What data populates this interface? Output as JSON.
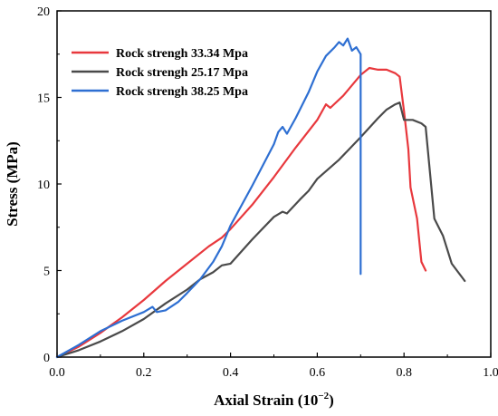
{
  "chart_data": {
    "type": "line",
    "xlabel_main": "Axial Strain (10",
    "xlabel_exp": "−2",
    "xlabel_close": ")",
    "ylabel": "Stress (MPa)",
    "xlim": [
      0,
      1.0
    ],
    "ylim": [
      0,
      20
    ],
    "x_ticks": [
      "0.0",
      "0.2",
      "0.4",
      "0.6",
      "0.8",
      "1.0"
    ],
    "y_ticks": [
      "0",
      "5",
      "10",
      "15",
      "20"
    ],
    "grid": false,
    "legend_position": "top-left",
    "series": [
      {
        "name": "Rock strengh 33.34 Mpa",
        "color": "#e8383d",
        "points": [
          [
            0,
            0
          ],
          [
            0.05,
            0.6
          ],
          [
            0.1,
            1.4
          ],
          [
            0.15,
            2.3
          ],
          [
            0.2,
            3.3
          ],
          [
            0.25,
            4.4
          ],
          [
            0.3,
            5.4
          ],
          [
            0.35,
            6.4
          ],
          [
            0.38,
            6.9
          ],
          [
            0.4,
            7.4
          ],
          [
            0.45,
            8.8
          ],
          [
            0.5,
            10.4
          ],
          [
            0.55,
            12.1
          ],
          [
            0.6,
            13.7
          ],
          [
            0.62,
            14.6
          ],
          [
            0.63,
            14.4
          ],
          [
            0.66,
            15.1
          ],
          [
            0.7,
            16.3
          ],
          [
            0.72,
            16.7
          ],
          [
            0.74,
            16.6
          ],
          [
            0.76,
            16.6
          ],
          [
            0.78,
            16.4
          ],
          [
            0.79,
            16.2
          ],
          [
            0.8,
            14.2
          ],
          [
            0.81,
            12.0
          ],
          [
            0.815,
            9.8
          ],
          [
            0.83,
            8.0
          ],
          [
            0.84,
            5.5
          ],
          [
            0.85,
            5.0
          ]
        ]
      },
      {
        "name": "Rock strengh 25.17 Mpa",
        "color": "#4a4a4a",
        "points": [
          [
            0,
            0
          ],
          [
            0.05,
            0.4
          ],
          [
            0.1,
            0.9
          ],
          [
            0.15,
            1.5
          ],
          [
            0.2,
            2.2
          ],
          [
            0.25,
            3.1
          ],
          [
            0.3,
            3.9
          ],
          [
            0.33,
            4.5
          ],
          [
            0.36,
            4.9
          ],
          [
            0.38,
            5.3
          ],
          [
            0.4,
            5.4
          ],
          [
            0.45,
            6.8
          ],
          [
            0.5,
            8.1
          ],
          [
            0.52,
            8.4
          ],
          [
            0.53,
            8.3
          ],
          [
            0.56,
            9.1
          ],
          [
            0.58,
            9.6
          ],
          [
            0.6,
            10.3
          ],
          [
            0.65,
            11.4
          ],
          [
            0.7,
            12.7
          ],
          [
            0.74,
            13.8
          ],
          [
            0.76,
            14.3
          ],
          [
            0.78,
            14.6
          ],
          [
            0.79,
            14.7
          ],
          [
            0.8,
            13.7
          ],
          [
            0.82,
            13.7
          ],
          [
            0.84,
            13.5
          ],
          [
            0.85,
            13.3
          ],
          [
            0.87,
            8.0
          ],
          [
            0.89,
            7.0
          ],
          [
            0.91,
            5.4
          ],
          [
            0.94,
            4.4
          ]
        ]
      },
      {
        "name": "Rock strengh 38.25 Mpa",
        "color": "#2e6fd2",
        "points": [
          [
            0,
            0
          ],
          [
            0.05,
            0.7
          ],
          [
            0.1,
            1.5
          ],
          [
            0.15,
            2.1
          ],
          [
            0.2,
            2.6
          ],
          [
            0.22,
            2.9
          ],
          [
            0.23,
            2.6
          ],
          [
            0.25,
            2.7
          ],
          [
            0.28,
            3.2
          ],
          [
            0.3,
            3.7
          ],
          [
            0.33,
            4.5
          ],
          [
            0.36,
            5.5
          ],
          [
            0.38,
            6.4
          ],
          [
            0.4,
            7.6
          ],
          [
            0.45,
            9.9
          ],
          [
            0.5,
            12.3
          ],
          [
            0.51,
            13.0
          ],
          [
            0.52,
            13.3
          ],
          [
            0.53,
            12.9
          ],
          [
            0.55,
            13.8
          ],
          [
            0.58,
            15.3
          ],
          [
            0.6,
            16.5
          ],
          [
            0.62,
            17.4
          ],
          [
            0.64,
            17.9
          ],
          [
            0.65,
            18.2
          ],
          [
            0.66,
            18.0
          ],
          [
            0.67,
            18.4
          ],
          [
            0.68,
            17.7
          ],
          [
            0.69,
            17.9
          ],
          [
            0.7,
            17.5
          ],
          [
            0.7,
            4.8
          ]
        ]
      }
    ]
  }
}
